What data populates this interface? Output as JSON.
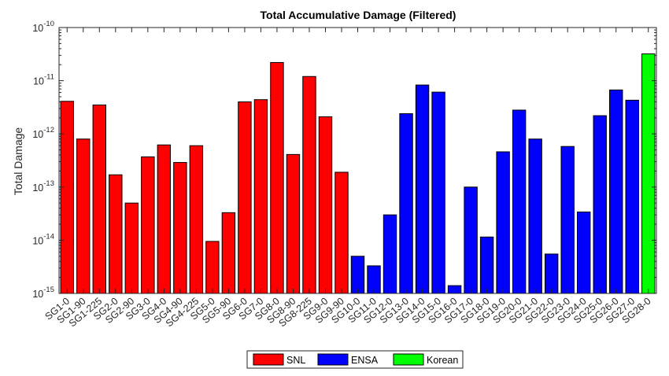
{
  "chart_data": {
    "type": "bar",
    "title": "Total Accumulative Damage (Filtered)",
    "xlabel": "",
    "ylabel": "Total Damage",
    "yscale": "log",
    "ylim": [
      1e-15,
      1e-10
    ],
    "yticks": [
      {
        "base": "10",
        "exp": "-15"
      },
      {
        "base": "10",
        "exp": "-14"
      },
      {
        "base": "10",
        "exp": "-13"
      },
      {
        "base": "10",
        "exp": "-12"
      },
      {
        "base": "10",
        "exp": "-11"
      },
      {
        "base": "10",
        "exp": "-10"
      }
    ],
    "grid": false,
    "legend_position": "bottom-center",
    "series": [
      {
        "name": "SNL",
        "color": "#ff0000"
      },
      {
        "name": "ENSA",
        "color": "#0000ff"
      },
      {
        "name": "Korean",
        "color": "#00ff00"
      }
    ],
    "categories": [
      "SG1-0",
      "SG1-90",
      "SG1-225",
      "SG2-0",
      "SG2-90",
      "SG3-0",
      "SG4-0",
      "SG4-90",
      "SG4-225",
      "SG5-0",
      "SG5-90",
      "SG6-0",
      "SG7-0",
      "SG8-0",
      "SG8-90",
      "SG8-225",
      "SG9-0",
      "SG9-90",
      "SG10-0",
      "SG11-0",
      "SG12-0",
      "SG13-0",
      "SG14-0",
      "SG15-0",
      "SG16-0",
      "SG17-0",
      "SG18-0",
      "SG19-0",
      "SG20-0",
      "SG21-0",
      "SG22-0",
      "SG23-0",
      "SG24-0",
      "SG25-0",
      "SG26-0",
      "SG27-0",
      "SG28-0"
    ],
    "values": [
      4.1e-12,
      8e-13,
      3.5e-12,
      1.7e-13,
      5e-14,
      3.7e-13,
      6.2e-13,
      2.9e-13,
      6e-13,
      9.5e-15,
      3.3e-14,
      4e-12,
      4.4e-12,
      2.2e-11,
      4.1e-13,
      1.2e-11,
      2.1e-12,
      1.9e-13,
      5e-15,
      3.3e-15,
      3e-14,
      2.4e-12,
      8.3e-12,
      6.1e-12,
      1.4e-15,
      1e-13,
      1.15e-14,
      4.6e-13,
      2.8e-12,
      8e-13,
      5.5e-15,
      5.8e-13,
      3.4e-14,
      2.2e-12,
      6.7e-12,
      4.3e-12,
      3.2e-11
    ],
    "groups": [
      "SNL",
      "SNL",
      "SNL",
      "SNL",
      "SNL",
      "SNL",
      "SNL",
      "SNL",
      "SNL",
      "SNL",
      "SNL",
      "SNL",
      "SNL",
      "SNL",
      "SNL",
      "SNL",
      "SNL",
      "SNL",
      "ENSA",
      "ENSA",
      "ENSA",
      "ENSA",
      "ENSA",
      "ENSA",
      "ENSA",
      "ENSA",
      "ENSA",
      "ENSA",
      "ENSA",
      "ENSA",
      "ENSA",
      "ENSA",
      "ENSA",
      "ENSA",
      "ENSA",
      "ENSA",
      "Korean"
    ]
  }
}
